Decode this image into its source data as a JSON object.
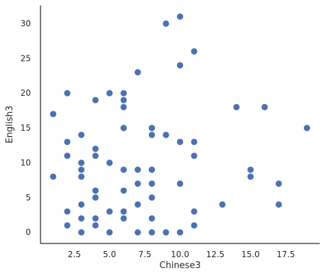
{
  "chart_data": {
    "type": "scatter",
    "xlabel": "Chinese3",
    "ylabel": "English3",
    "xlim": [
      0.1,
      19.9
    ],
    "ylim": [
      -1.6,
      32.6
    ],
    "x_ticks": [
      2.5,
      5.0,
      7.5,
      10.0,
      12.5,
      15.0,
      17.5
    ],
    "x_tick_labels": [
      "2.5",
      "5.0",
      "7.5",
      "10.0",
      "12.5",
      "15.0",
      "17.5"
    ],
    "y_ticks": [
      0,
      5,
      10,
      15,
      20,
      25,
      30
    ],
    "y_tick_labels": [
      "0",
      "5",
      "10",
      "15",
      "20",
      "25",
      "30"
    ],
    "grid": false,
    "point_color": "#4c72b0",
    "points": [
      {
        "x": 1,
        "y": 17
      },
      {
        "x": 1,
        "y": 8
      },
      {
        "x": 2,
        "y": 20
      },
      {
        "x": 2,
        "y": 13
      },
      {
        "x": 2,
        "y": 11
      },
      {
        "x": 2,
        "y": 3
      },
      {
        "x": 2,
        "y": 1
      },
      {
        "x": 3,
        "y": 14
      },
      {
        "x": 3,
        "y": 10
      },
      {
        "x": 3,
        "y": 9
      },
      {
        "x": 3,
        "y": 8
      },
      {
        "x": 3,
        "y": 4
      },
      {
        "x": 3,
        "y": 2
      },
      {
        "x": 3,
        "y": 0
      },
      {
        "x": 4,
        "y": 19
      },
      {
        "x": 4,
        "y": 12
      },
      {
        "x": 4,
        "y": 11
      },
      {
        "x": 4,
        "y": 6
      },
      {
        "x": 4,
        "y": 5
      },
      {
        "x": 4,
        "y": 2
      },
      {
        "x": 4,
        "y": 1
      },
      {
        "x": 5,
        "y": 20
      },
      {
        "x": 5,
        "y": 10
      },
      {
        "x": 5,
        "y": 3
      },
      {
        "x": 5,
        "y": 0
      },
      {
        "x": 6,
        "y": 20
      },
      {
        "x": 6,
        "y": 19
      },
      {
        "x": 6,
        "y": 18
      },
      {
        "x": 6,
        "y": 15
      },
      {
        "x": 6,
        "y": 9
      },
      {
        "x": 6,
        "y": 6
      },
      {
        "x": 6,
        "y": 3
      },
      {
        "x": 6,
        "y": 2
      },
      {
        "x": 7,
        "y": 23
      },
      {
        "x": 7,
        "y": 9
      },
      {
        "x": 7,
        "y": 7
      },
      {
        "x": 7,
        "y": 4
      },
      {
        "x": 7,
        "y": 0
      },
      {
        "x": 8,
        "y": 15
      },
      {
        "x": 8,
        "y": 14
      },
      {
        "x": 8,
        "y": 9
      },
      {
        "x": 8,
        "y": 7
      },
      {
        "x": 8,
        "y": 5
      },
      {
        "x": 8,
        "y": 2
      },
      {
        "x": 8,
        "y": 0
      },
      {
        "x": 9,
        "y": 30
      },
      {
        "x": 9,
        "y": 14
      },
      {
        "x": 9,
        "y": 0
      },
      {
        "x": 10,
        "y": 31
      },
      {
        "x": 10,
        "y": 24
      },
      {
        "x": 10,
        "y": 13
      },
      {
        "x": 10,
        "y": 7
      },
      {
        "x": 10,
        "y": 0
      },
      {
        "x": 11,
        "y": 26
      },
      {
        "x": 11,
        "y": 13
      },
      {
        "x": 11,
        "y": 11
      },
      {
        "x": 11,
        "y": 3
      },
      {
        "x": 11,
        "y": 1
      },
      {
        "x": 13,
        "y": 4
      },
      {
        "x": 14,
        "y": 18
      },
      {
        "x": 15,
        "y": 9
      },
      {
        "x": 15,
        "y": 8
      },
      {
        "x": 16,
        "y": 18
      },
      {
        "x": 17,
        "y": 7
      },
      {
        "x": 17,
        "y": 4
      },
      {
        "x": 19,
        "y": 15
      }
    ]
  }
}
